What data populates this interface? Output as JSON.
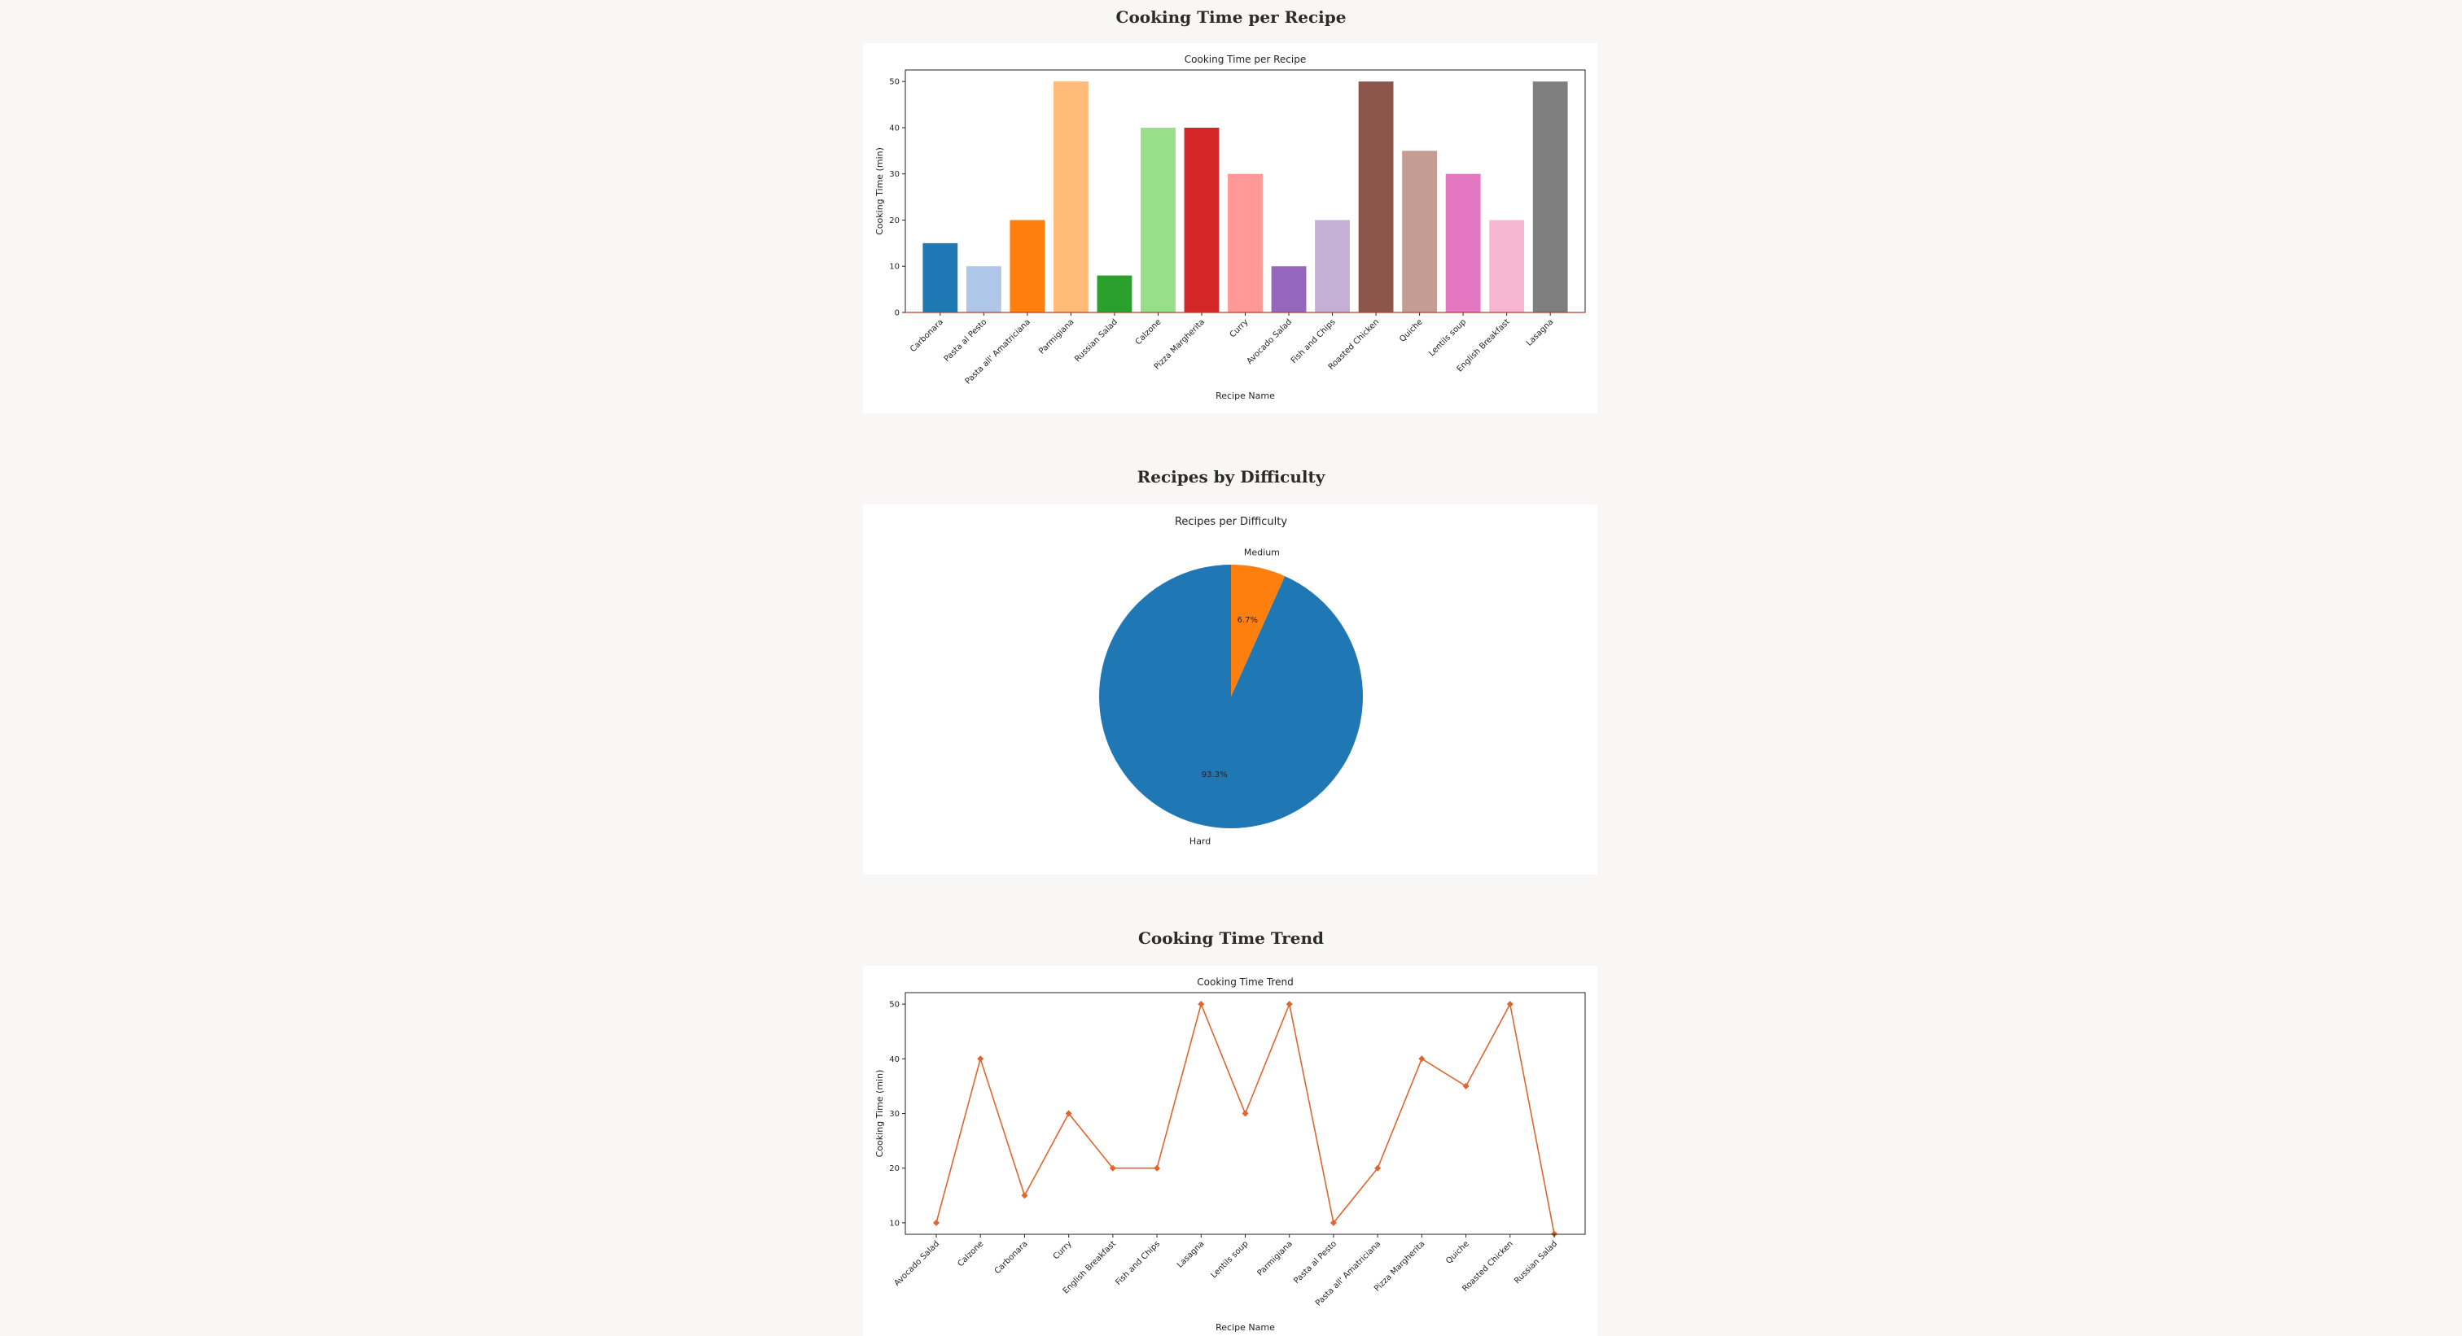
{
  "sections": {
    "bar": {
      "title": "Cooking Time per Recipe"
    },
    "pie": {
      "title": "Recipes by Difficulty"
    },
    "line": {
      "title": "Cooking Time Trend"
    }
  },
  "chart_data": [
    {
      "type": "bar",
      "title": "Cooking Time per Recipe",
      "xlabel": "Recipe Name",
      "ylabel": "Cooking Time (min)",
      "ylim": [
        0,
        52.5
      ],
      "yticks": [
        0,
        10,
        20,
        30,
        40,
        50
      ],
      "grid": false,
      "categories": [
        "Carbonara",
        "Pasta al Pesto",
        "Pasta all' Amatriciana",
        "Parmigiana",
        "Russian Salad",
        "Calzone",
        "Pizza Margherita",
        "Curry",
        "Avocado Salad",
        "Fish and Chips",
        "Roasted Chicken",
        "Quiche",
        "Lentils soup",
        "English Breakfast",
        "Lasagna"
      ],
      "values": [
        15,
        10,
        20,
        50,
        8,
        40,
        40,
        30,
        10,
        20,
        50,
        35,
        30,
        20,
        50
      ],
      "colors": [
        "#1f77b4",
        "#aec7e8",
        "#ff7f0e",
        "#ffbb78",
        "#2ca02c",
        "#98df8a",
        "#d62728",
        "#ff9896",
        "#9467bd",
        "#c5b0d5",
        "#8c564b",
        "#c49c94",
        "#e377c2",
        "#f7b6d2",
        "#7f7f7f"
      ]
    },
    {
      "type": "pie",
      "title": "Recipes per Difficulty",
      "slices": [
        {
          "label": "Hard",
          "value": 93.3,
          "pct_label": "93.3%",
          "color": "#1f77b4"
        },
        {
          "label": "Medium",
          "value": 6.7,
          "pct_label": "6.7%",
          "color": "#ff7f0e"
        }
      ]
    },
    {
      "type": "line",
      "title": "Cooking Time Trend",
      "xlabel": "Recipe Name",
      "ylabel": "Cooking Time (min)",
      "ylim": [
        7.9,
        52.1
      ],
      "yticks": [
        10,
        20,
        30,
        40,
        50
      ],
      "grid": false,
      "color": "#e0662d",
      "categories": [
        "Avocado Salad",
        "Calzone",
        "Carbonara",
        "Curry",
        "English Breakfast",
        "Fish and Chips",
        "Lasagna",
        "Lentils soup",
        "Parmigiana",
        "Pasta al Pesto",
        "Pasta all' Amatriciana",
        "Pizza Margherita",
        "Quiche",
        "Roasted Chicken",
        "Russian Salad"
      ],
      "values": [
        10,
        40,
        15,
        30,
        20,
        20,
        50,
        30,
        50,
        10,
        20,
        40,
        35,
        50,
        8
      ]
    }
  ]
}
